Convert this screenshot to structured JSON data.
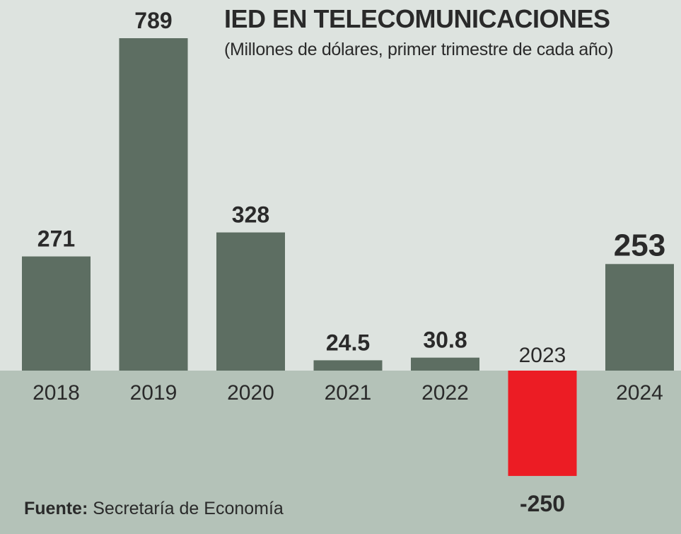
{
  "colors": {
    "background_top": "#dde3df",
    "background_bottom": "#b4c2b8",
    "bar_positive": "#5d6e62",
    "bar_negative": "#ec1c24",
    "text": "#2a2a2a"
  },
  "source": {
    "label": "Fuente:",
    "text": "Secretaría de Economía"
  },
  "chart_data": {
    "type": "bar",
    "title": "IED EN TELECOMUNICACIONES",
    "subtitle": "(Millones de dólares, primer trimestre de cada año)",
    "categories": [
      "2018",
      "2019",
      "2020",
      "2021",
      "2022",
      "2023",
      "2024"
    ],
    "values": [
      271,
      789,
      328,
      24.5,
      30.8,
      -250,
      253
    ],
    "value_labels": [
      "271",
      "789",
      "328",
      "24.5",
      "30.8",
      "-250",
      "253"
    ],
    "highlight": "2024",
    "grid": false,
    "ylim": [
      -250,
      789
    ]
  }
}
